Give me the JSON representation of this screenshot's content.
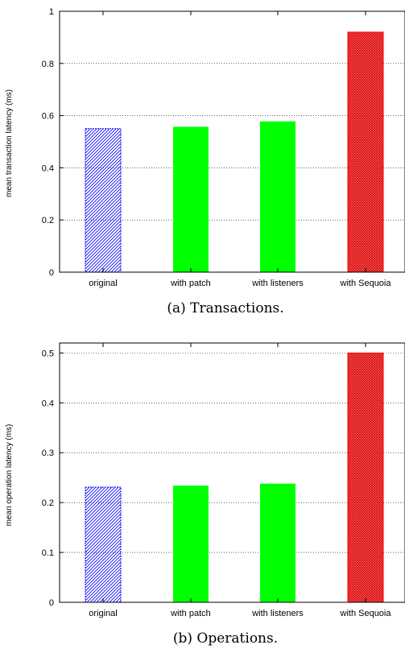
{
  "chart_data": [
    {
      "type": "bar",
      "categories": [
        "original",
        "with patch",
        "with listeners",
        "with Sequoia"
      ],
      "values": [
        0.55,
        0.557,
        0.578,
        0.92
      ],
      "ylabel": "mean transaction latency (ms)",
      "xlabel": "",
      "ylim": [
        0,
        1
      ],
      "yticks": [
        "0",
        "0.2",
        "0.4",
        "0.6",
        "0.8",
        "1"
      ],
      "caption": "(a)  Transactions.",
      "grid": true,
      "bar_styles": [
        "blue-hatched",
        "green-solid",
        "green-solid",
        "red-crosshatched"
      ],
      "colors": {
        "original": "#0000ff",
        "patch": "#00ff00",
        "listeners": "#00ff00",
        "sequoia": "#ff0000"
      }
    },
    {
      "type": "bar",
      "categories": [
        "original",
        "with patch",
        "with listeners",
        "with Sequoia"
      ],
      "values": [
        0.231,
        0.234,
        0.238,
        0.5
      ],
      "ylabel": "mean operation latency (ms)",
      "xlabel": "",
      "ylim": [
        0,
        0.52
      ],
      "yticks": [
        "0",
        "0.1",
        "0.2",
        "0.3",
        "0.4",
        "0.5"
      ],
      "caption": "(b)  Operations.",
      "grid": true,
      "bar_styles": [
        "blue-hatched",
        "green-solid",
        "green-solid",
        "red-crosshatched"
      ],
      "colors": {
        "original": "#0000ff",
        "patch": "#00ff00",
        "listeners": "#00ff00",
        "sequoia": "#ff0000"
      }
    }
  ]
}
